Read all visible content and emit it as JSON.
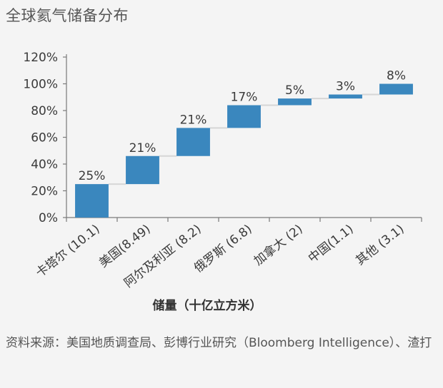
{
  "chart_data": {
    "type": "waterfall",
    "title": "全球氦气储备分布",
    "xlabel": "储量（十亿立方米）",
    "ylabel": "",
    "ylim": [
      0,
      120
    ],
    "yticks": [
      "0%",
      "20%",
      "40%",
      "60%",
      "80%",
      "100%",
      "120%"
    ],
    "ytick_values": [
      0,
      20,
      40,
      60,
      80,
      100,
      120
    ],
    "categories": [
      "卡塔尔 (10.1)",
      "美国(8.49)",
      "阿尔及利亚 (8.2)",
      "俄罗斯 (6.8)",
      "加拿大 (2)",
      "中国(1.1)",
      "其他 (3.1)"
    ],
    "starts": [
      0,
      25,
      46,
      67,
      84,
      89,
      92
    ],
    "values": [
      25,
      21,
      21,
      17,
      5,
      3,
      8
    ],
    "labels": [
      "25%",
      "21%",
      "21%",
      "17%",
      "5%",
      "3%",
      "8%"
    ],
    "bar_color": "#3a87be",
    "connector_color": "#d6d6d6",
    "grid": false,
    "legend": "none"
  },
  "source": "资料来源：美国地质调查局、彭博行业研究（Bloomberg Intelligence）、渣打"
}
